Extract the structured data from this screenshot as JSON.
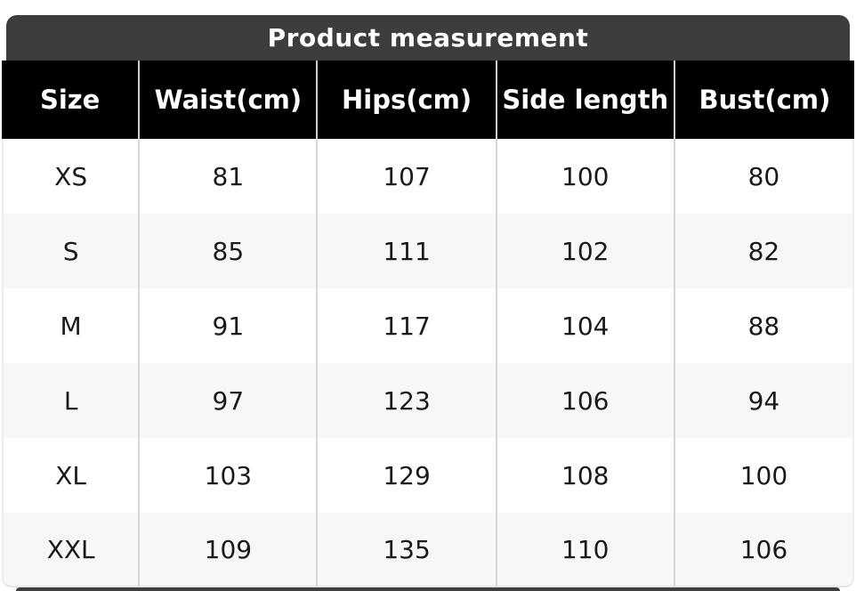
{
  "header": {
    "title": "Product measurement"
  },
  "chart_data": {
    "type": "table",
    "title": "Product measurement",
    "columns": [
      "Size",
      "Waist(cm)",
      "Hips(cm)",
      "Side length",
      "Bust(cm)"
    ],
    "rows": [
      [
        "XS",
        81,
        107,
        100,
        80
      ],
      [
        "S",
        85,
        111,
        102,
        82
      ],
      [
        "M",
        91,
        117,
        104,
        88
      ],
      [
        "L",
        97,
        123,
        106,
        94
      ],
      [
        "XL",
        103,
        129,
        108,
        100
      ],
      [
        "XXL",
        109,
        135,
        110,
        106
      ]
    ]
  },
  "colors": {
    "title_bar_bg": "#3d3d3d",
    "header_bg": "#000000",
    "header_text": "#ffffff",
    "row_alt_bg": "#f7f7f7",
    "body_text": "#1a1a1a",
    "divider": "#d4d4d4",
    "next_section_bar_bg": "#3d3d3d"
  }
}
